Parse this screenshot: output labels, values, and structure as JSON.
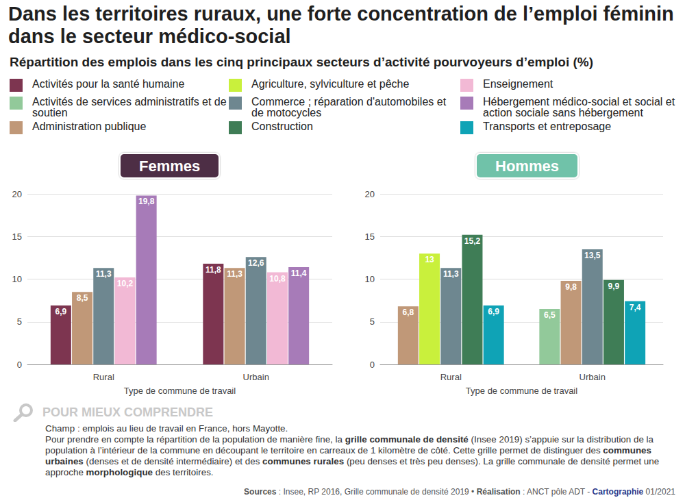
{
  "title": "Dans les territoires ruraux, une forte concentration de l’emploi féminin dans le secteur médico-social",
  "subtitle": "Répartition des emplois dans les cinq principaux secteurs d’activité pourvoyeurs d’emploi (%)",
  "legend": [
    {
      "name": "Activités pour la santé humaine",
      "color": "#7d3550"
    },
    {
      "name": "Activités de services administratifs et de soutien",
      "color": "#92c99a"
    },
    {
      "name": "Administration publique",
      "color": "#c09878"
    },
    {
      "name": "Agriculture, sylviculture et pêche",
      "color": "#c9f03c"
    },
    {
      "name": "Commerce ; réparation d'automobiles et de motocycles",
      "color": "#6e8790"
    },
    {
      "name": "Construction",
      "color": "#3f7d56"
    },
    {
      "name": "Enseignement",
      "color": "#f2b9d5"
    },
    {
      "name": "Hébergement médico-social et social et action sociale sans hébergement",
      "color": "#a77bb8"
    },
    {
      "name": "Transports et entreposage",
      "color": "#0fa3b6"
    }
  ],
  "chart_data": [
    {
      "type": "bar",
      "title": "Femmes",
      "categories": [
        "Rural",
        "Urbain"
      ],
      "x_label": "Type de commune de travail",
      "ylim": [
        0,
        20
      ],
      "yticks": [
        0,
        5,
        10,
        15,
        20
      ],
      "grid": true,
      "data_labels": true,
      "series": [
        {
          "name": "Activités pour la santé humaine",
          "color": "#7d3550",
          "values": [
            6.9,
            11.8
          ],
          "value_labels": [
            "6,9",
            "11,8"
          ]
        },
        {
          "name": "Administration publique",
          "color": "#c09878",
          "values": [
            8.5,
            11.3
          ],
          "value_labels": [
            "8,5",
            "11,3"
          ]
        },
        {
          "name": "Commerce ; réparation d'automobiles et de motocycles",
          "color": "#6e8790",
          "values": [
            11.3,
            12.6
          ],
          "value_labels": [
            "11,3",
            "12,6"
          ]
        },
        {
          "name": "Enseignement",
          "color": "#f2b9d5",
          "values": [
            10.2,
            10.8
          ],
          "value_labels": [
            "10,2",
            "10,8"
          ]
        },
        {
          "name": "Hébergement médico-social et social et action sociale sans hébergement",
          "color": "#a77bb8",
          "values": [
            19.8,
            11.4
          ],
          "value_labels": [
            "19,8",
            "11,4"
          ]
        }
      ]
    },
    {
      "type": "bar",
      "title": "Hommes",
      "categories": [
        "Rural",
        "Urbain"
      ],
      "x_label": "Type de commune de travail",
      "ylim": [
        0,
        20
      ],
      "yticks": [
        0,
        5,
        10,
        15,
        20
      ],
      "grid": true,
      "data_labels": true,
      "series": [
        {
          "name": "Activités de services administratifs et de soutien",
          "color": "#92c99a",
          "values": [
            null,
            6.5
          ],
          "value_labels": [
            null,
            "6,5"
          ]
        },
        {
          "name": "Administration publique",
          "color": "#c09878",
          "values": [
            6.8,
            9.8
          ],
          "value_labels": [
            "6,8",
            "9,8"
          ]
        },
        {
          "name": "Agriculture, sylviculture et pêche",
          "color": "#c9f03c",
          "values": [
            13,
            null
          ],
          "value_labels": [
            "13",
            null
          ]
        },
        {
          "name": "Commerce ; réparation d'automobiles et de motocycles",
          "color": "#6e8790",
          "values": [
            11.3,
            13.5
          ],
          "value_labels": [
            "11,3",
            "13,5"
          ]
        },
        {
          "name": "Construction",
          "color": "#3f7d56",
          "values": [
            15.2,
            9.9
          ],
          "value_labels": [
            "15,2",
            "9,9"
          ]
        },
        {
          "name": "Transports et entreposage",
          "color": "#0fa3b6",
          "values": [
            6.9,
            7.4
          ],
          "value_labels": [
            "6,9",
            "7,4"
          ]
        }
      ]
    }
  ],
  "note": {
    "heading": "POUR MIEUX COMPRENDRE",
    "paragraphs": [
      [
        {
          "text": "Champ : emplois au lieu de travail en France, hors Mayotte.",
          "bold": false
        }
      ],
      [
        {
          "text": "Pour prendre en compte la répartition de la population de manière fine, la ",
          "bold": false
        },
        {
          "text": "grille communale de densité",
          "bold": true
        },
        {
          "text": " (Insee 2019) s’appuie sur la distribution de la population à l’intérieur de la commune en découpant le territoire en carreaux de 1 kilomètre de côté. Cette grille permet de distinguer des ",
          "bold": false
        },
        {
          "text": "communes urbaines",
          "bold": true
        },
        {
          "text": " (denses et de densité intermédiaire) et des ",
          "bold": false
        },
        {
          "text": "communes rurales",
          "bold": true
        },
        {
          "text": " (peu denses et très peu denses). La grille communale de densité permet une approche ",
          "bold": false
        },
        {
          "text": "morphologique",
          "bold": true
        },
        {
          "text": " des territoires.",
          "bold": false
        }
      ]
    ]
  },
  "source": [
    {
      "text": "Sources",
      "bold": true
    },
    {
      "text": " : Insee, RP 2016, Grille communale de densité 2019 • ",
      "bold": false
    },
    {
      "text": "Réalisation",
      "bold": true
    },
    {
      "text": " : ANCT pôle ADT - ",
      "bold": false
    },
    {
      "text": "Cartographie",
      "bold": true
    },
    {
      "text": " 01/2021",
      "bold": false
    }
  ]
}
